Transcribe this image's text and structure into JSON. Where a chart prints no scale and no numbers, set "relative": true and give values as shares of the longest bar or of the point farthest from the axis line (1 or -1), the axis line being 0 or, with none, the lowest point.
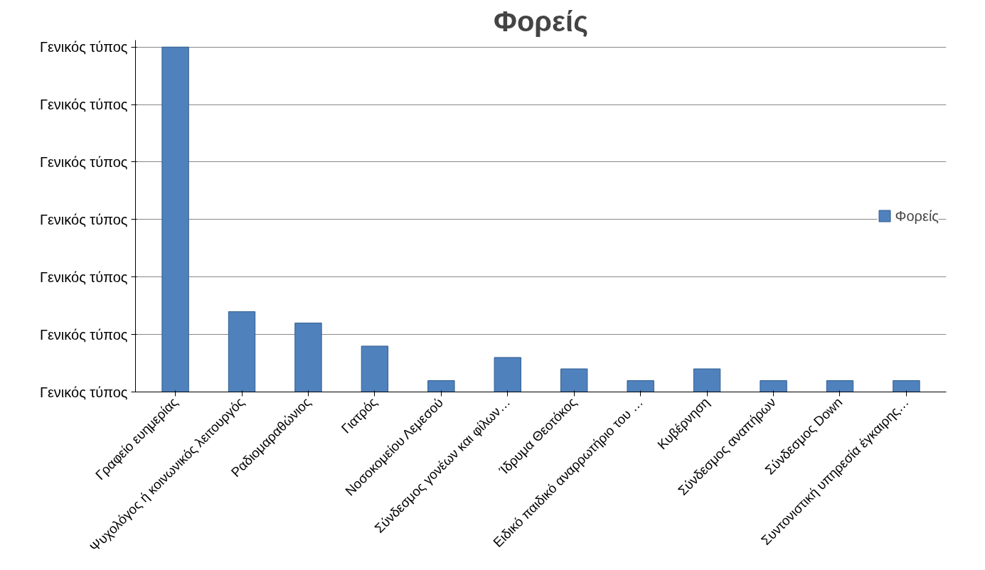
{
  "chart_data": {
    "type": "bar",
    "title": "Φορείς",
    "relative": true,
    "categories": [
      "Γραφείο ευημερίας",
      "Ψυχολόγος ή κοινωνικός λειτουργός",
      "Ραδιομαραθώνιος",
      "Γιατρός",
      "Νοσοκομείου Λεμεσού",
      "Σύνδεσμος γονέων και φίλων…",
      "Ίδρυμα Θεοτόκος",
      "Ειδικό παιδικό αναρρωτήριο του …",
      "Κυβέρνηση",
      "Σύνδεσμος αναπήρων",
      "Σύνδεσμος Down",
      "Συντονιστική υπηρεσία έγκαιρης…"
    ],
    "series": [
      {
        "name": "Φορείς",
        "color": "#4f81bd",
        "values": [
          1,
          0.233,
          0.2,
          0.133,
          0.033,
          0.1,
          0.067,
          0.033,
          0.067,
          0.033,
          0.033,
          0.033
        ]
      }
    ],
    "annotations": [
      "Γενικός τύπος",
      "Γενικός τύπος",
      "Γενικός τύπος",
      "Γενικός τύπος",
      "Γενικός τύπος",
      "Γενικός τύπος",
      "Γενικός τύπος"
    ],
    "grid": "y",
    "legend": "right"
  }
}
